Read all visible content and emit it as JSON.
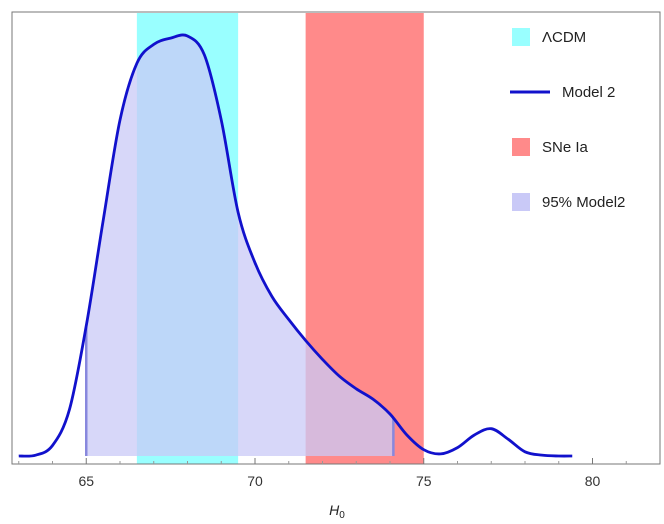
{
  "chart_data": {
    "type": "area",
    "title": "",
    "xlabel": "H",
    "xlabel_sub": "0",
    "ylabel": "",
    "xlim": [
      62.8,
      82.0
    ],
    "ylim": [
      0,
      1.0
    ],
    "x_ticks": [
      65,
      70,
      75,
      80
    ],
    "x_tick_labels": [
      "65",
      "70",
      "75",
      "80"
    ],
    "y_ticks_labeled": false,
    "grid": false,
    "legend_position": "top-right",
    "bands": [
      {
        "name": "ΛCDM",
        "x_range": [
          66.5,
          69.5
        ],
        "color": "#99ffff"
      },
      {
        "name": "SNe Ia",
        "x_range": [
          71.5,
          75.0
        ],
        "color": "#ff8a8a"
      }
    ],
    "series": [
      {
        "name": "Model 2",
        "color": "#1111cc",
        "x": [
          63.0,
          63.5,
          64.0,
          64.5,
          65.0,
          65.5,
          66.0,
          66.5,
          67.0,
          67.5,
          68.0,
          68.5,
          69.0,
          69.5,
          70.0,
          70.5,
          71.0,
          71.5,
          72.0,
          72.5,
          73.0,
          73.5,
          74.0,
          74.5,
          75.0,
          75.5,
          76.0,
          76.5,
          77.0,
          77.5,
          78.0,
          78.5,
          79.0,
          79.4
        ],
        "y": [
          0.0,
          0.002,
          0.025,
          0.11,
          0.31,
          0.56,
          0.8,
          0.935,
          0.98,
          0.995,
          1.0,
          0.955,
          0.8,
          0.58,
          0.46,
          0.38,
          0.325,
          0.275,
          0.23,
          0.19,
          0.16,
          0.135,
          0.1,
          0.05,
          0.015,
          0.005,
          0.02,
          0.05,
          0.065,
          0.04,
          0.01,
          0.002,
          0.0,
          0.0
        ]
      }
    ],
    "interval": {
      "name": "95% Model2",
      "x_range": [
        65.0,
        74.1
      ],
      "color": "#c9c9f7",
      "line_color": "#8888dd"
    }
  }
}
